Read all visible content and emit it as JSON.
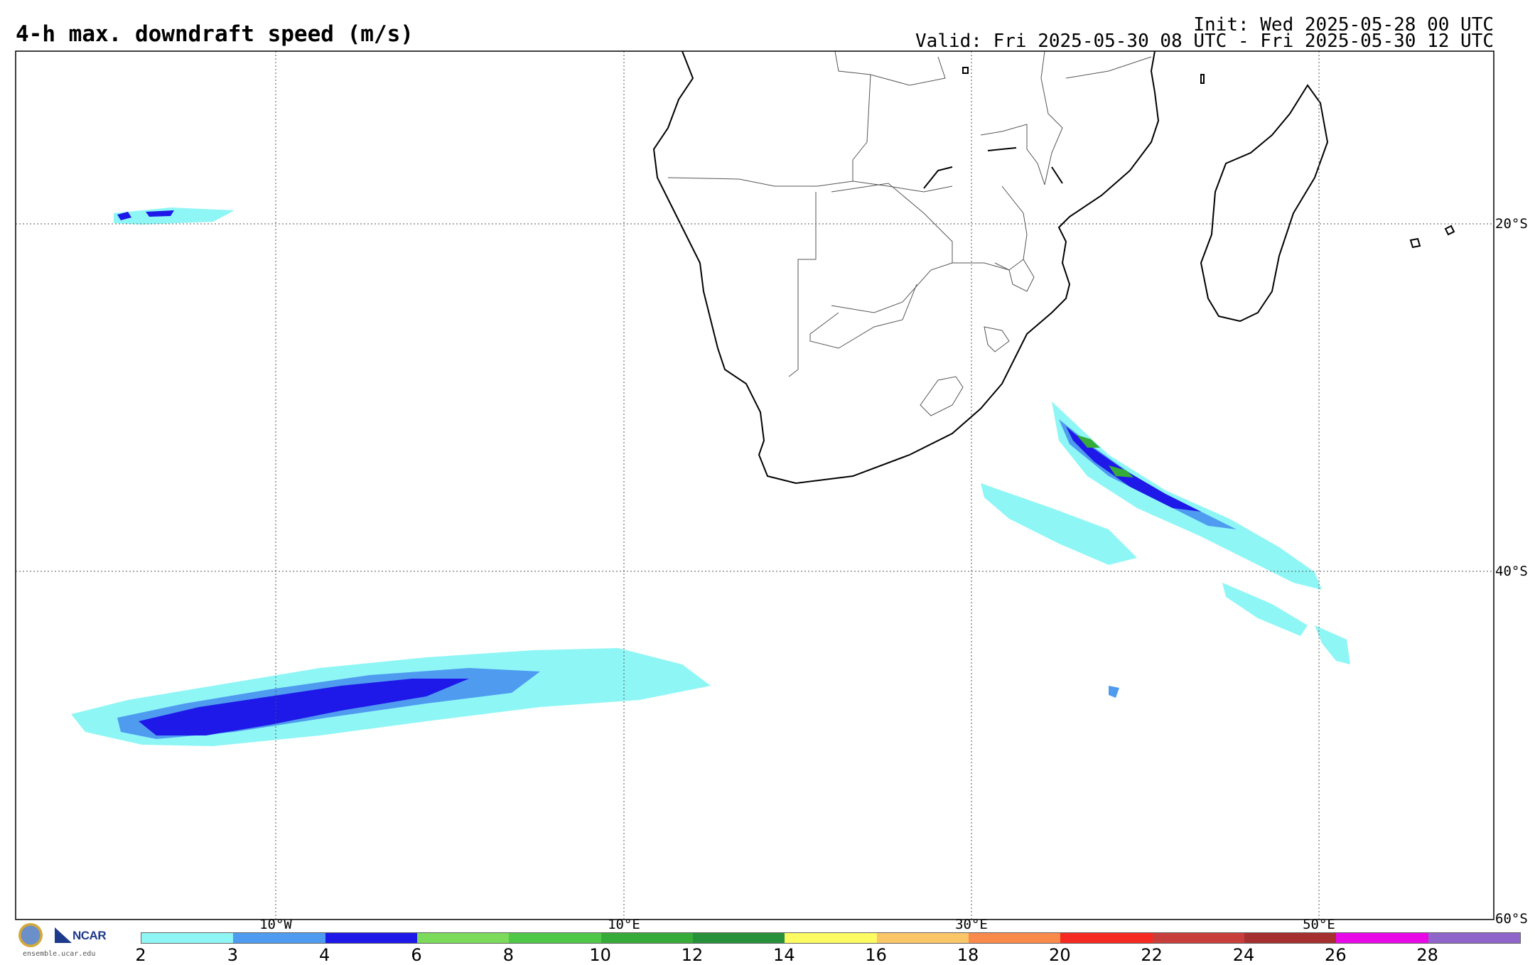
{
  "header": {
    "title": "4-h max. downdraft speed (m/s)",
    "init": "Init: Wed 2025-05-28 00 UTC",
    "valid": "Valid: Fri 2025-05-30 08 UTC - Fri 2025-05-30 12 UTC"
  },
  "map": {
    "lat_labels": [
      "20°S",
      "40°S",
      "60°S"
    ],
    "lon_labels": [
      "10°W",
      "10°E",
      "30°E",
      "50°E"
    ]
  },
  "logos": {
    "ncar": "NCAR",
    "site": "ensemble.ucar.edu"
  },
  "colorbar": {
    "labels": [
      "2",
      "3",
      "4",
      "6",
      "8",
      "10",
      "12",
      "14",
      "16",
      "18",
      "20",
      "22",
      "24",
      "26",
      "28"
    ],
    "colors": [
      "#8ff6f6",
      "#4f9bf0",
      "#1e18e8",
      "#7cdb5a",
      "#4fc848",
      "#37ab3a",
      "#26913a",
      "#fdfb62",
      "#fbc668",
      "#f98a4b",
      "#f52a22",
      "#c73e3b",
      "#a62f2f",
      "#e80ae6",
      "#9065c9"
    ]
  }
}
